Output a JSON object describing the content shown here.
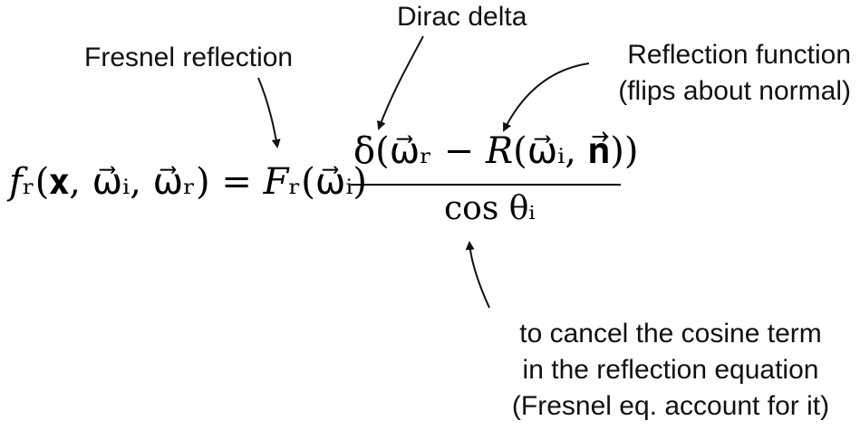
{
  "annotations": {
    "dirac": "Dirac delta",
    "fresnel": "Fresnel reflection",
    "reflection_line1": "Reflection function",
    "reflection_line2": "(flips about normal)",
    "cancel_line1": "to cancel the cosine term",
    "cancel_line2": "in the reflection equation",
    "cancel_line3": "(Fresnel eq. account for it)"
  },
  "equation": {
    "lhs": "𝑓ᵣ(𝐱, ω⃗ᵢ, ω⃗ᵣ) = 𝐹ᵣ(ω⃗ᵢ)",
    "numerator": "δ(ω⃗ᵣ − 𝑅(ω⃗ᵢ, 𝐧⃗))",
    "denominator": "cos θᵢ"
  }
}
